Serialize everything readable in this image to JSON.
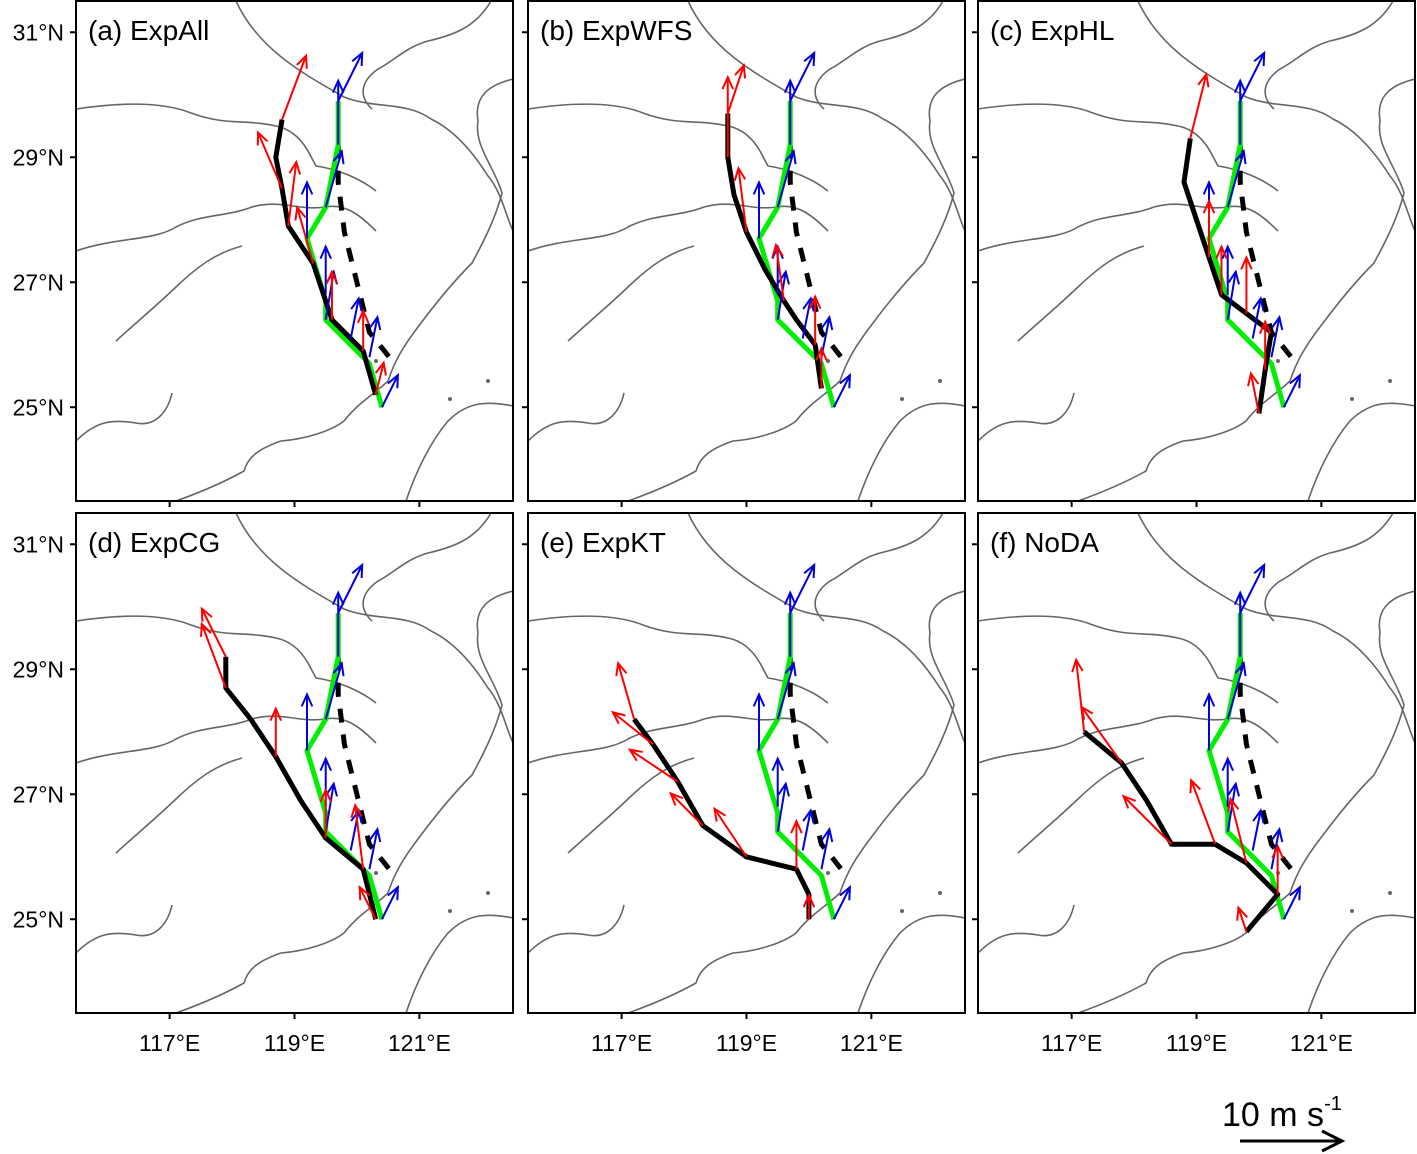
{
  "figure": {
    "panels": [
      {
        "id": "a",
        "title": "(a) ExpAll",
        "show_lat_labels": true,
        "show_lon_labels": false
      },
      {
        "id": "b",
        "title": "(b) ExpWFS",
        "show_lat_labels": false,
        "show_lon_labels": false
      },
      {
        "id": "c",
        "title": "(c) ExpHL",
        "show_lat_labels": false,
        "show_lon_labels": false
      },
      {
        "id": "d",
        "title": "(d) ExpCG",
        "show_lat_labels": true,
        "show_lon_labels": true
      },
      {
        "id": "e",
        "title": "(e) ExpKT",
        "show_lat_labels": false,
        "show_lon_labels": true
      },
      {
        "id": "f",
        "title": "(f) NoDA",
        "show_lat_labels": false,
        "show_lon_labels": true
      }
    ],
    "lat_ticks": [
      {
        "value": 31,
        "label": "31°N"
      },
      {
        "value": 29,
        "label": "29°N"
      },
      {
        "value": 27,
        "label": "27°N"
      },
      {
        "value": 25,
        "label": "25°N"
      }
    ],
    "lon_ticks": [
      {
        "value": 117,
        "label": "117°E"
      },
      {
        "value": 119,
        "label": "119°E"
      },
      {
        "value": 121,
        "label": "121°E"
      }
    ],
    "scale": {
      "value": "10",
      "unit": "m s",
      "exponent": "-1"
    },
    "colors": {
      "simulated_track": "#000000",
      "observed_track": "#00ee00",
      "observed_dashed": "#000000",
      "simulated_motion_vector": "#ff0000",
      "observed_motion_vector": "#0000dd",
      "coastline": "#666666"
    }
  },
  "chart_data": {
    "type": "map",
    "lon_range": [
      115.5,
      122.5
    ],
    "lat_range": [
      23.5,
      31.5
    ],
    "observed_track": [
      [
        120.4,
        25.0
      ],
      [
        120.2,
        25.7
      ],
      [
        119.9,
        26.0
      ],
      [
        119.5,
        26.4
      ],
      [
        119.5,
        26.7
      ],
      [
        119.2,
        27.7
      ],
      [
        119.5,
        28.2
      ],
      [
        119.7,
        29.2
      ],
      [
        119.7,
        29.9
      ]
    ],
    "observed_dashed_track": [
      [
        119.7,
        29.2
      ],
      [
        119.7,
        28.6
      ],
      [
        119.8,
        27.8
      ],
      [
        120.0,
        27.0
      ],
      [
        120.2,
        26.2
      ],
      [
        120.6,
        25.7
      ]
    ],
    "observed_vectors": [
      [
        120.4,
        25.0,
        0.2,
        0.4
      ],
      [
        120.2,
        25.8,
        0.1,
        0.5
      ],
      [
        119.9,
        26.1,
        0.1,
        0.5
      ],
      [
        119.5,
        26.4,
        0.1,
        0.6
      ],
      [
        119.5,
        26.8,
        0.0,
        0.6
      ],
      [
        119.2,
        27.7,
        0.0,
        0.7
      ],
      [
        119.5,
        28.2,
        0.2,
        0.7
      ],
      [
        119.7,
        29.2,
        0.0,
        0.8
      ],
      [
        119.7,
        29.9,
        0.3,
        0.6
      ]
    ],
    "simulated_tracks": [
      {
        "panel": "a",
        "points": [
          [
            120.3,
            25.2
          ],
          [
            120.1,
            25.9
          ],
          [
            119.6,
            26.4
          ],
          [
            119.5,
            26.7
          ],
          [
            119.3,
            27.3
          ],
          [
            118.9,
            27.9
          ],
          [
            118.8,
            28.5
          ],
          [
            118.7,
            29.0
          ],
          [
            118.8,
            29.6
          ]
        ]
      },
      {
        "panel": "b",
        "points": [
          [
            120.2,
            25.3
          ],
          [
            120.1,
            26.0
          ],
          [
            119.8,
            26.4
          ],
          [
            119.6,
            26.7
          ],
          [
            119.3,
            27.2
          ],
          [
            119.0,
            27.8
          ],
          [
            118.8,
            28.4
          ],
          [
            118.7,
            29.0
          ],
          [
            118.7,
            29.7
          ]
        ]
      },
      {
        "panel": "c",
        "points": [
          [
            120.0,
            24.9
          ],
          [
            120.1,
            25.6
          ],
          [
            120.2,
            26.2
          ],
          [
            119.8,
            26.5
          ],
          [
            119.4,
            26.8
          ],
          [
            119.2,
            27.4
          ],
          [
            119.0,
            28.0
          ],
          [
            118.8,
            28.6
          ],
          [
            118.9,
            29.3
          ]
        ]
      },
      {
        "panel": "d",
        "points": [
          [
            120.3,
            25.0
          ],
          [
            120.1,
            25.8
          ],
          [
            119.5,
            26.3
          ],
          [
            119.1,
            26.9
          ],
          [
            118.7,
            27.6
          ],
          [
            118.3,
            28.2
          ],
          [
            117.9,
            28.7
          ],
          [
            117.9,
            29.2
          ]
        ]
      },
      {
        "panel": "e",
        "points": [
          [
            120.0,
            25.0
          ],
          [
            120.0,
            25.4
          ],
          [
            119.8,
            25.8
          ],
          [
            119.0,
            26.0
          ],
          [
            118.3,
            26.5
          ],
          [
            117.9,
            27.2
          ],
          [
            117.5,
            27.8
          ],
          [
            117.2,
            28.2
          ]
        ]
      },
      {
        "panel": "f",
        "points": [
          [
            119.8,
            24.8
          ],
          [
            120.3,
            25.4
          ],
          [
            119.8,
            25.9
          ],
          [
            119.3,
            26.2
          ],
          [
            118.6,
            26.2
          ],
          [
            118.2,
            26.9
          ],
          [
            117.8,
            27.5
          ],
          [
            117.2,
            28.0
          ]
        ]
      }
    ],
    "simulated_vectors": [
      {
        "panel": "a",
        "vectors": [
          [
            120.3,
            25.2,
            0.1,
            0.4
          ],
          [
            120.1,
            25.9,
            0.0,
            0.5
          ],
          [
            119.6,
            26.4,
            0.0,
            0.6
          ],
          [
            119.3,
            27.3,
            -0.2,
            0.7
          ],
          [
            118.9,
            27.9,
            0.1,
            0.8
          ],
          [
            118.8,
            28.5,
            -0.3,
            0.7
          ],
          [
            118.8,
            29.6,
            0.3,
            0.8
          ]
        ]
      },
      {
        "panel": "b",
        "vectors": [
          [
            120.2,
            25.3,
            0.0,
            0.5
          ],
          [
            120.1,
            26.0,
            0.0,
            0.6
          ],
          [
            119.6,
            26.7,
            -0.1,
            0.7
          ],
          [
            119.0,
            27.8,
            -0.1,
            0.8
          ],
          [
            118.7,
            29.0,
            0.0,
            1.0
          ],
          [
            118.7,
            29.7,
            0.2,
            0.6
          ]
        ]
      },
      {
        "panel": "c",
        "vectors": [
          [
            120.0,
            24.9,
            -0.1,
            0.5
          ],
          [
            120.1,
            25.6,
            0.0,
            0.6
          ],
          [
            119.8,
            26.5,
            0.0,
            0.7
          ],
          [
            119.4,
            26.8,
            0.0,
            0.6
          ],
          [
            119.2,
            27.4,
            0.0,
            0.7
          ],
          [
            118.9,
            29.3,
            0.2,
            0.8
          ]
        ]
      },
      {
        "panel": "d",
        "vectors": [
          [
            120.3,
            25.0,
            -0.2,
            0.4
          ],
          [
            120.1,
            25.8,
            -0.1,
            0.8
          ],
          [
            119.5,
            26.3,
            0.0,
            0.6
          ],
          [
            118.7,
            27.6,
            0.0,
            0.6
          ],
          [
            117.9,
            28.7,
            -0.3,
            0.8
          ],
          [
            117.9,
            29.2,
            -0.3,
            0.6
          ]
        ]
      },
      {
        "panel": "e",
        "vectors": [
          [
            120.0,
            25.0,
            0.0,
            0.3
          ],
          [
            119.8,
            25.8,
            0.0,
            0.6
          ],
          [
            119.0,
            26.0,
            -0.4,
            0.6
          ],
          [
            118.3,
            26.5,
            -0.4,
            0.4
          ],
          [
            117.9,
            27.2,
            -0.6,
            0.4
          ],
          [
            117.5,
            27.8,
            -0.5,
            0.4
          ],
          [
            117.2,
            28.2,
            -0.2,
            0.7
          ]
        ]
      },
      {
        "panel": "f",
        "vectors": [
          [
            119.8,
            24.8,
            -0.1,
            0.3
          ],
          [
            120.3,
            25.4,
            0.0,
            0.6
          ],
          [
            119.8,
            25.9,
            -0.2,
            0.8
          ],
          [
            119.3,
            26.2,
            -0.3,
            0.8
          ],
          [
            118.6,
            26.2,
            -0.6,
            0.6
          ],
          [
            117.8,
            27.5,
            -0.5,
            0.7
          ],
          [
            117.2,
            28.0,
            -0.1,
            0.9
          ]
        ]
      }
    ]
  }
}
